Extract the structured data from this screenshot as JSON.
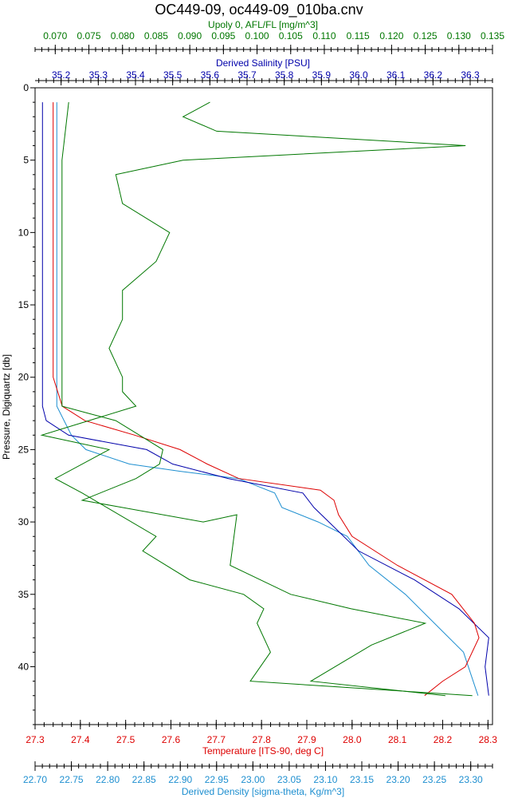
{
  "chart_data": {
    "type": "line",
    "title": "OC449-09, oc449-09_010ba.cnv",
    "y_axis": {
      "label": "Pressure, Digiquartz [db]",
      "range": [
        0,
        44
      ],
      "reversed": true,
      "ticks": [
        0,
        5,
        10,
        15,
        20,
        25,
        30,
        35,
        40
      ]
    },
    "top_axes": [
      {
        "label": "Upoly 0, AFL/FL [mg/m^3]",
        "color": "#007700",
        "range": [
          0.067,
          0.135
        ],
        "ticks": [
          "0.070",
          "0.075",
          "0.080",
          "0.085",
          "0.090",
          "0.095",
          "0.100",
          "0.105",
          "0.110",
          "0.115",
          "0.120",
          "0.125",
          "0.130",
          "0.135"
        ]
      },
      {
        "label": "Derived Salinity [PSU]",
        "color": "#0000aa",
        "range": [
          35.13,
          36.36
        ],
        "ticks": [
          "35.2",
          "35.3",
          "35.4",
          "35.5",
          "35.6",
          "35.7",
          "35.8",
          "35.9",
          "36.0",
          "36.1",
          "36.2",
          "36.3"
        ]
      }
    ],
    "bottom_axes": [
      {
        "label": "Temperature [ITS-90, deg C]",
        "color": "#dd0000",
        "range": [
          27.3,
          28.31
        ],
        "ticks": [
          "27.3",
          "27.4",
          "27.5",
          "27.6",
          "27.7",
          "27.8",
          "27.9",
          "28.0",
          "28.1",
          "28.2",
          "28.3"
        ]
      },
      {
        "label": "Derived Density [sigma-theta, Kg/m^3]",
        "color": "#1e8fd0",
        "range": [
          22.7,
          23.33
        ],
        "ticks": [
          "22.70",
          "22.75",
          "22.80",
          "22.85",
          "22.90",
          "22.95",
          "23.00",
          "23.05",
          "23.10",
          "23.15",
          "23.20",
          "23.25",
          "23.30"
        ]
      }
    ],
    "series": [
      {
        "color": "#1e8fd0",
        "axis": "bottom_axes.1",
        "points": [
          [
            22.73,
            1
          ],
          [
            22.73,
            5
          ],
          [
            22.73,
            10
          ],
          [
            22.73,
            15
          ],
          [
            22.73,
            20
          ],
          [
            22.73,
            22
          ],
          [
            22.74,
            23
          ],
          [
            22.75,
            24
          ],
          [
            22.77,
            25
          ],
          [
            22.83,
            26
          ],
          [
            22.9,
            26.5
          ],
          [
            22.98,
            27
          ],
          [
            23.03,
            28
          ],
          [
            23.04,
            29
          ],
          [
            23.09,
            30
          ],
          [
            23.13,
            31
          ],
          [
            23.16,
            33
          ],
          [
            23.21,
            35
          ],
          [
            23.25,
            37
          ],
          [
            23.29,
            39
          ],
          [
            23.31,
            42
          ]
        ]
      },
      {
        "color": "#0000aa",
        "axis": "top_axes.1",
        "points": [
          [
            35.15,
            1
          ],
          [
            35.15,
            5
          ],
          [
            35.15,
            10
          ],
          [
            35.15,
            15
          ],
          [
            35.15,
            20
          ],
          [
            35.15,
            22
          ],
          [
            35.16,
            23
          ],
          [
            35.22,
            24
          ],
          [
            35.43,
            25
          ],
          [
            35.5,
            26
          ],
          [
            35.65,
            27
          ],
          [
            35.85,
            28
          ],
          [
            35.88,
            29
          ],
          [
            35.92,
            30
          ],
          [
            36.0,
            32
          ],
          [
            36.15,
            34
          ],
          [
            36.27,
            36
          ],
          [
            36.35,
            38
          ],
          [
            36.34,
            40
          ],
          [
            36.35,
            42
          ]
        ]
      },
      {
        "color": "#dd0000",
        "axis": "bottom_axes.0",
        "points": [
          [
            27.34,
            1
          ],
          [
            27.34,
            5
          ],
          [
            27.34,
            10
          ],
          [
            27.34,
            15
          ],
          [
            27.34,
            20
          ],
          [
            27.36,
            22
          ],
          [
            27.41,
            23
          ],
          [
            27.52,
            24
          ],
          [
            27.62,
            25
          ],
          [
            27.68,
            26
          ],
          [
            27.75,
            27
          ],
          [
            27.93,
            27.8
          ],
          [
            27.96,
            28.5
          ],
          [
            27.97,
            29.5
          ],
          [
            28.0,
            31
          ],
          [
            28.1,
            33
          ],
          [
            28.22,
            35
          ],
          [
            28.27,
            37
          ],
          [
            28.28,
            38
          ],
          [
            28.25,
            40
          ],
          [
            28.2,
            41
          ],
          [
            28.16,
            42
          ]
        ]
      },
      {
        "color": "#007700",
        "axis": "top_axes.0",
        "points": [
          [
            0.072,
            1
          ],
          [
            0.071,
            5
          ],
          [
            0.071,
            10
          ],
          [
            0.071,
            15
          ],
          [
            0.071,
            20
          ],
          [
            0.071,
            22
          ],
          [
            0.075,
            22.5
          ],
          [
            0.079,
            23
          ],
          [
            0.086,
            25
          ],
          [
            0.0855,
            26
          ],
          [
            0.082,
            27
          ],
          [
            0.074,
            28.5
          ],
          [
            0.092,
            30
          ],
          [
            0.097,
            29.5
          ],
          [
            0.096,
            33
          ],
          [
            0.105,
            35
          ],
          [
            0.114,
            36
          ],
          [
            0.125,
            37
          ],
          [
            0.117,
            38.5
          ],
          [
            0.108,
            41
          ],
          [
            0.128,
            42
          ]
        ]
      },
      {
        "color": "#007700",
        "axis": "top_axes.0",
        "points": [
          [
            0.093,
            1
          ],
          [
            0.089,
            2
          ],
          [
            0.094,
            3
          ],
          [
            0.131,
            4
          ],
          [
            0.089,
            5
          ],
          [
            0.079,
            6
          ],
          [
            0.08,
            8
          ],
          [
            0.087,
            10
          ],
          [
            0.085,
            12
          ],
          [
            0.08,
            14
          ],
          [
            0.08,
            16
          ],
          [
            0.078,
            18
          ],
          [
            0.08,
            20
          ],
          [
            0.08,
            21
          ],
          [
            0.082,
            22
          ],
          [
            0.075,
            23
          ],
          [
            0.068,
            24
          ],
          [
            0.078,
            25
          ],
          [
            0.07,
            27
          ],
          [
            0.074,
            28
          ],
          [
            0.085,
            31
          ],
          [
            0.083,
            32
          ],
          [
            0.09,
            34
          ],
          [
            0.098,
            35
          ],
          [
            0.101,
            36
          ],
          [
            0.1,
            37
          ],
          [
            0.102,
            39
          ],
          [
            0.099,
            41
          ],
          [
            0.132,
            42
          ]
        ]
      }
    ]
  }
}
